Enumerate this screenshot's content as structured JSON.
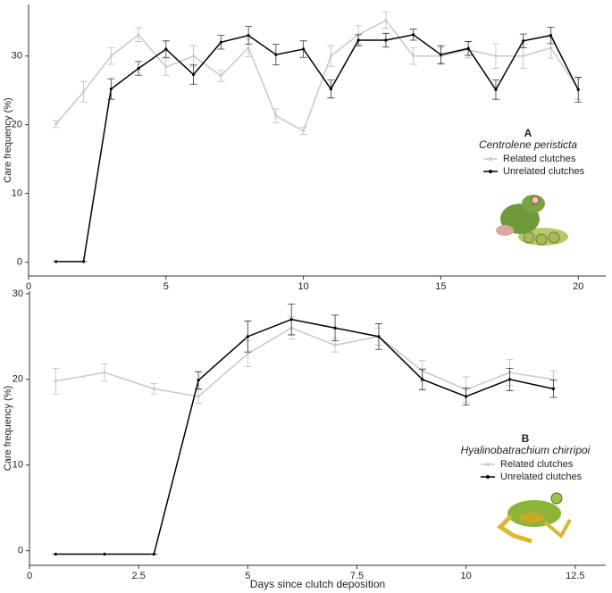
{
  "chart_data": [
    {
      "type": "line",
      "title": "A",
      "subtitle": "Centrolene peristicta",
      "ylabel": "Care frequency (%)",
      "x": [
        1,
        2,
        3,
        4,
        5,
        6,
        7,
        8,
        9,
        10,
        11,
        12,
        13,
        14,
        15,
        16,
        17,
        18,
        19,
        20
      ],
      "series": [
        {
          "name": "Related clutches",
          "color": "#c8c8c8",
          "values": [
            20.1,
            24.8,
            30,
            33.1,
            28.4,
            30,
            27.1,
            31.2,
            21.3,
            19.1,
            30,
            33.1,
            35.2,
            30,
            30,
            30.9,
            30,
            30,
            31.2,
            25.2
          ],
          "errors": [
            0.5,
            1.5,
            1.2,
            1,
            1.2,
            1.5,
            0.8,
            1.3,
            1,
            0.5,
            1.5,
            1.3,
            1.2,
            1.2,
            1.2,
            1.2,
            1.8,
            1.8,
            1.5,
            1.5
          ]
        },
        {
          "name": "Unrelated clutches",
          "color": "#000000",
          "values": [
            0.1,
            0.1,
            25.2,
            28.2,
            31,
            27.3,
            32,
            33,
            30.2,
            31,
            25.2,
            32.3,
            32.3,
            33.1,
            30.2,
            31.1,
            25.1,
            32.2,
            33,
            25.1
          ],
          "errors": [
            0,
            0,
            1.5,
            1,
            1.2,
            1.4,
            1,
            1.3,
            1.5,
            1.2,
            1.3,
            0.8,
            1,
            0.8,
            1.3,
            1,
            1.4,
            1,
            1.2,
            1.8
          ]
        }
      ],
      "xlim": [
        0,
        21
      ],
      "xticks": [
        0,
        5,
        10,
        15,
        20
      ],
      "ylim": [
        -2,
        37.5
      ],
      "yticks": [
        0,
        10,
        20,
        30
      ]
    },
    {
      "type": "line",
      "title": "B",
      "subtitle": "Hyalinobatrachium chirripoi",
      "ylabel": "Care frequency (%)",
      "xlabel": "Days since clutch deposition",
      "x": [
        0.6,
        1.72,
        2.85,
        3.87,
        5,
        6,
        7,
        8,
        9,
        10,
        11,
        12
      ],
      "series": [
        {
          "name": "Related clutches",
          "color": "#c8c8c8",
          "values": [
            19.8,
            20.8,
            18.9,
            18,
            23,
            26,
            24,
            25,
            21,
            18.8,
            20.8,
            20
          ],
          "errors": [
            1.5,
            1,
            0.6,
            0.8,
            1.5,
            1.3,
            0.8,
            1,
            1.2,
            1.5,
            1.5,
            1
          ]
        },
        {
          "name": "Unrelated clutches",
          "color": "#000000",
          "values": [
            -0.4,
            -0.4,
            -0.4,
            19.9,
            25,
            27,
            26,
            25,
            20,
            18,
            20,
            18.9
          ],
          "errors": [
            0,
            0,
            0,
            1,
            1.8,
            1.8,
            1.5,
            1.5,
            1.2,
            1,
            1.3,
            1
          ]
        }
      ],
      "xlim": [
        0,
        13.2
      ],
      "xticks": [
        0,
        2.5,
        5,
        7.5,
        10,
        12.5
      ],
      "ylim": [
        -1.7,
        30.3
      ],
      "yticks": [
        0,
        10,
        20,
        30
      ]
    }
  ]
}
